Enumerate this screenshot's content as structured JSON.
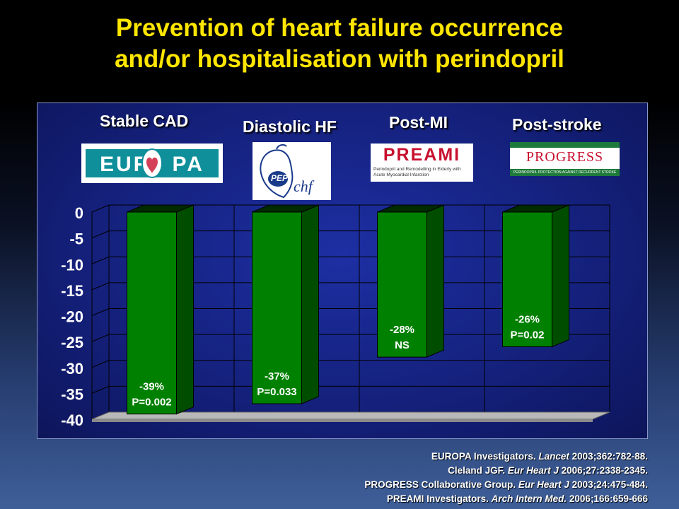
{
  "title": {
    "line1": "Prevention of heart failure occurrence",
    "line2": "and/or hospitalisation with perindopril"
  },
  "studies": [
    {
      "label": "Stable CAD",
      "logo_text": "EUR",
      "logo_text2": "PA"
    },
    {
      "label": "Diastolic HF",
      "logo_text": "PEP",
      "logo_text2": "chf"
    },
    {
      "label": "Post-MI",
      "logo_text": "PREAMI",
      "logo_subtext": "Perindopril and Remodelling in Elderly with Acute Myocardial Infarction"
    },
    {
      "label": "Post-stroke",
      "logo_text": "PROGRESS",
      "logo_subtext": "PERINDOPRIL PROTECTION AGAINST RECURRENT STROKE STUDY"
    }
  ],
  "chart_data": {
    "type": "bar",
    "categories": [
      "Stable CAD",
      "Diastolic HF",
      "Post-MI",
      "Post-stroke"
    ],
    "values": [
      -39,
      -37,
      -28,
      -26
    ],
    "data_labels": [
      [
        "-39%",
        "P=0.002"
      ],
      [
        "-37%",
        "P=0.033"
      ],
      [
        "-28%",
        "NS"
      ],
      [
        "-26%",
        "P=0.02"
      ]
    ],
    "ylim": [
      -40,
      0
    ],
    "yticks": [
      "0",
      "-5",
      "-10",
      "-15",
      "-20",
      "-25",
      "-30",
      "-35",
      "-40"
    ],
    "ytick_values": [
      0,
      -5,
      -10,
      -15,
      -20,
      -25,
      -30,
      -35,
      -40
    ],
    "grid": true,
    "bar_color": "#008000",
    "title": "",
    "xlabel": "",
    "ylabel": ""
  },
  "references": [
    {
      "text": "EUROPA Investigators. ",
      "italic": "Lancet",
      "rest": " 2003;362:782-88."
    },
    {
      "text": "Cleland JGF. ",
      "italic": "Eur Heart J",
      "rest": " 2006;27:2338-2345."
    },
    {
      "text": "PROGRESS Collaborative Group. ",
      "italic": "Eur Heart J",
      "rest": " 2003;24:475-484."
    },
    {
      "text": "PREAMI Investigators. ",
      "italic": "Arch Intern Med.",
      "rest": " 2006;166:659-666"
    }
  ]
}
